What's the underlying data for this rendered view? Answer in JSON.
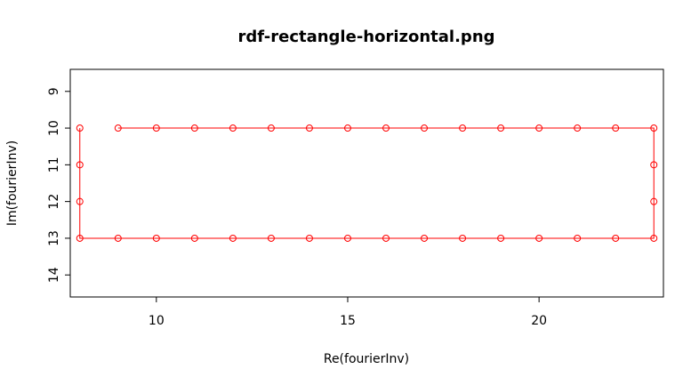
{
  "chart_data": {
    "type": "line",
    "title": "rdf-rectangle-horizontal.png",
    "xlabel": "Re(fourierInv)",
    "ylabel": "Im(fourierInv)",
    "xlim": [
      7.75,
      23.25
    ],
    "ylim": [
      14.6,
      8.4
    ],
    "x_ticks": [
      10,
      15,
      20
    ],
    "x_tick_labels": [
      "10",
      "15",
      "20"
    ],
    "y_ticks": [
      9,
      10,
      11,
      12,
      13,
      14
    ],
    "y_tick_labels": [
      "9",
      "10",
      "11",
      "12",
      "13",
      "14"
    ],
    "y_axis_inverted": true,
    "grid": false,
    "legend": "none",
    "series": [
      {
        "color": "#ff0000",
        "marker": "open-circle",
        "points": [
          [
            9,
            10
          ],
          [
            10,
            10
          ],
          [
            11,
            10
          ],
          [
            12,
            10
          ],
          [
            13,
            10
          ],
          [
            14,
            10
          ],
          [
            15,
            10
          ],
          [
            16,
            10
          ],
          [
            17,
            10
          ],
          [
            18,
            10
          ],
          [
            19,
            10
          ],
          [
            20,
            10
          ],
          [
            21,
            10
          ],
          [
            22,
            10
          ],
          [
            23,
            10
          ],
          [
            23,
            11
          ],
          [
            23,
            12
          ],
          [
            23,
            13
          ],
          [
            22,
            13
          ],
          [
            21,
            13
          ],
          [
            20,
            13
          ],
          [
            19,
            13
          ],
          [
            18,
            13
          ],
          [
            17,
            13
          ],
          [
            16,
            13
          ],
          [
            15,
            13
          ],
          [
            14,
            13
          ],
          [
            13,
            13
          ],
          [
            12,
            13
          ],
          [
            11,
            13
          ],
          [
            10,
            13
          ],
          [
            9,
            13
          ],
          [
            8,
            13
          ],
          [
            8,
            12
          ],
          [
            8,
            11
          ],
          [
            8,
            10
          ]
        ]
      }
    ]
  }
}
